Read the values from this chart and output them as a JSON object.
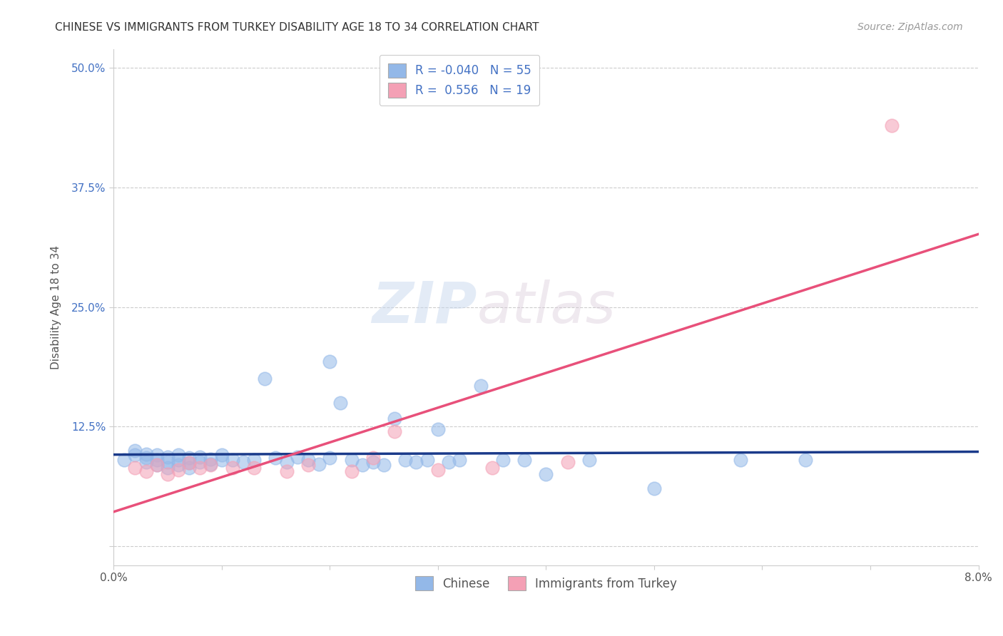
{
  "title": "CHINESE VS IMMIGRANTS FROM TURKEY DISABILITY AGE 18 TO 34 CORRELATION CHART",
  "source": "Source: ZipAtlas.com",
  "ylabel": "Disability Age 18 to 34",
  "xlim": [
    0.0,
    0.08
  ],
  "ylim": [
    -0.02,
    0.52
  ],
  "xticks": [
    0.0,
    0.01,
    0.02,
    0.03,
    0.04,
    0.05,
    0.06,
    0.07,
    0.08
  ],
  "xticklabels": [
    "0.0%",
    "",
    "",
    "",
    "",
    "",
    "",
    "",
    "8.0%"
  ],
  "yticks": [
    0.0,
    0.125,
    0.25,
    0.375,
    0.5
  ],
  "yticklabels": [
    "",
    "12.5%",
    "25.0%",
    "37.5%",
    "50.0%"
  ],
  "grid_color": "#cccccc",
  "background_color": "#ffffff",
  "chinese_color": "#93b8e8",
  "turkey_color": "#f4a0b5",
  "chinese_line_color": "#1a3a8a",
  "turkey_line_color": "#e8507a",
  "R_chinese": -0.04,
  "N_chinese": 55,
  "R_turkey": 0.556,
  "N_turkey": 19,
  "legend_label_chinese": "Chinese",
  "legend_label_turkey": "Immigrants from Turkey",
  "watermark_zip": "ZIP",
  "watermark_atlas": "atlas",
  "chinese_x": [
    0.001,
    0.002,
    0.002,
    0.003,
    0.003,
    0.003,
    0.004,
    0.004,
    0.004,
    0.005,
    0.005,
    0.005,
    0.006,
    0.006,
    0.006,
    0.007,
    0.007,
    0.007,
    0.008,
    0.008,
    0.009,
    0.009,
    0.01,
    0.01,
    0.011,
    0.012,
    0.013,
    0.014,
    0.015,
    0.016,
    0.017,
    0.018,
    0.019,
    0.02,
    0.02,
    0.021,
    0.022,
    0.023,
    0.024,
    0.025,
    0.026,
    0.027,
    0.028,
    0.029,
    0.03,
    0.031,
    0.032,
    0.034,
    0.036,
    0.038,
    0.04,
    0.044,
    0.05,
    0.058,
    0.064
  ],
  "chinese_y": [
    0.09,
    0.095,
    0.1,
    0.088,
    0.092,
    0.096,
    0.085,
    0.09,
    0.095,
    0.082,
    0.088,
    0.093,
    0.085,
    0.09,
    0.095,
    0.082,
    0.087,
    0.092,
    0.088,
    0.093,
    0.086,
    0.091,
    0.09,
    0.095,
    0.09,
    0.088,
    0.09,
    0.175,
    0.092,
    0.088,
    0.093,
    0.09,
    0.086,
    0.193,
    0.092,
    0.15,
    0.09,
    0.085,
    0.088,
    0.085,
    0.133,
    0.09,
    0.088,
    0.09,
    0.122,
    0.088,
    0.09,
    0.168,
    0.09,
    0.09,
    0.075,
    0.09,
    0.06,
    0.09,
    0.09
  ],
  "turkey_x": [
    0.002,
    0.003,
    0.004,
    0.005,
    0.006,
    0.007,
    0.008,
    0.009,
    0.011,
    0.013,
    0.016,
    0.018,
    0.022,
    0.024,
    0.026,
    0.03,
    0.035,
    0.042,
    0.072
  ],
  "turkey_y": [
    0.082,
    0.078,
    0.085,
    0.075,
    0.08,
    0.087,
    0.082,
    0.085,
    0.082,
    0.082,
    0.078,
    0.085,
    0.078,
    0.092,
    0.12,
    0.08,
    0.082,
    0.088,
    0.44
  ]
}
